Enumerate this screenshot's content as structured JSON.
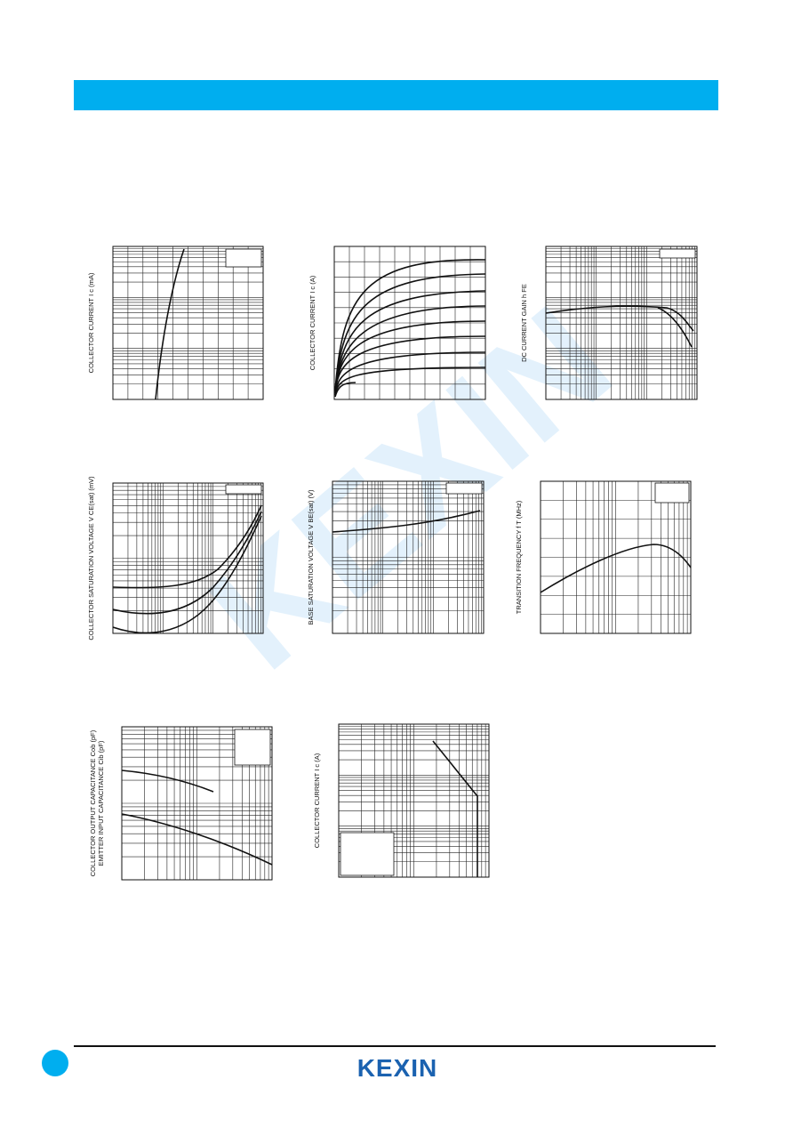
{
  "watermark": "KEXIN",
  "graphs": [
    {
      "ylabel": "COLLECTOR CURRENT  I c (mA)"
    },
    {
      "ylabel": "COLLECTOR CURRENT  I c (A)"
    },
    {
      "ylabel": "DC CURRENT GAIN  h FE"
    },
    {
      "ylabel": "COLLECTOR SATURATION VOLTAGE  V CE(sat) (mV)"
    },
    {
      "ylabel": "BASE SATURATION VOLTAGE  V BE(sat) (V)"
    },
    {
      "ylabel": "TRANSITION FREQUENCY  f T (MHz)"
    },
    {
      "ylabel": "COLLECTOR OUTPUT CAPACITANCE  Cob (pF)",
      "ylabel2": "EMITTER INPUT CAPACITANCE  Cib (pF)"
    },
    {
      "ylabel": "COLLECTOR CURRENT  I c (A)"
    }
  ],
  "footer": {
    "logo": "KEXIN"
  }
}
